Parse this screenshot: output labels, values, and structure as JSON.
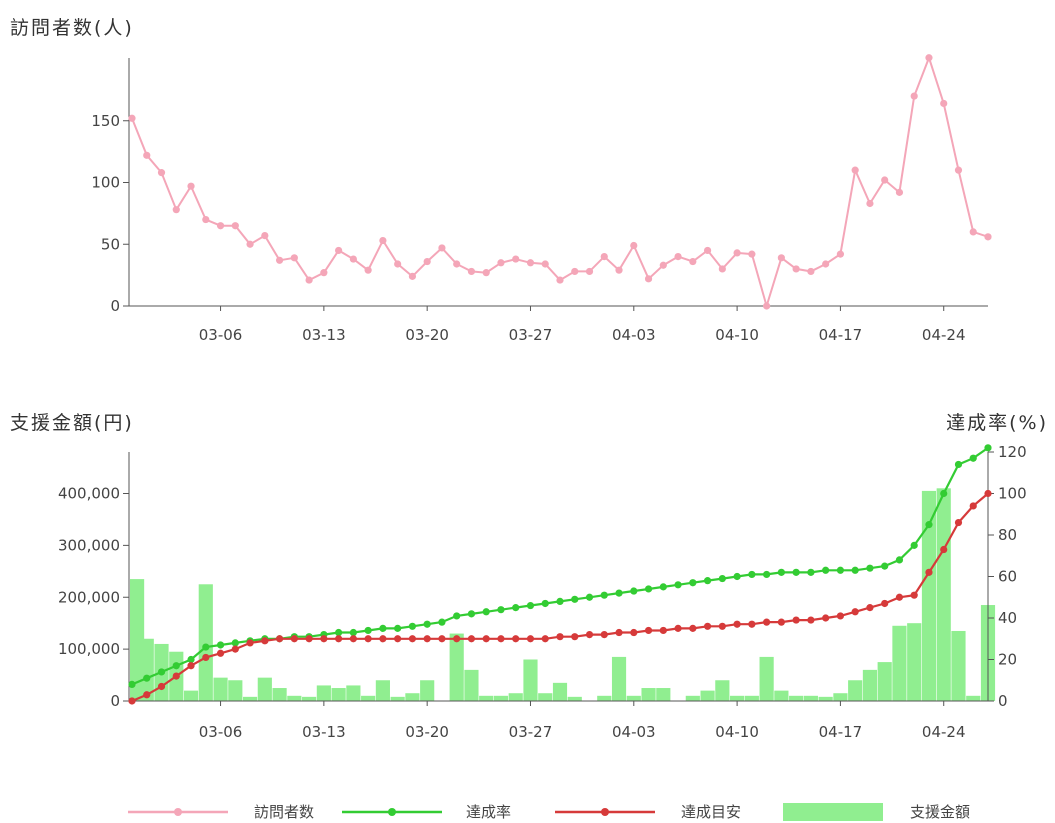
{
  "chart_data": [
    {
      "type": "line",
      "ylabel": "訪問者数(人)",
      "xticks": [
        "03-06",
        "03-13",
        "03-20",
        "03-27",
        "04-03",
        "04-10",
        "04-17",
        "04-24"
      ],
      "yticks": [
        "0",
        "50",
        "100",
        "150"
      ],
      "ylim": [
        0,
        200
      ],
      "x_start": "02-29",
      "grid": false,
      "series": [
        {
          "name": "訪問者数",
          "color": "#f4a6b8",
          "values": [
            152,
            122,
            108,
            78,
            97,
            70,
            65,
            65,
            50,
            57,
            37,
            39,
            21,
            27,
            45,
            38,
            29,
            53,
            34,
            24,
            36,
            47,
            34,
            28,
            27,
            35,
            38,
            35,
            34,
            21,
            28,
            28,
            40,
            29,
            49,
            22,
            33,
            40,
            36,
            45,
            30,
            43,
            42,
            0,
            39,
            30,
            28,
            34,
            42,
            110,
            83,
            102,
            92,
            170,
            201,
            164,
            110,
            60,
            56
          ]
        }
      ]
    },
    {
      "type": "bar+line",
      "ylabel_left": "支援金額(円)",
      "ylabel_right": "達成率(%)",
      "xticks": [
        "03-06",
        "03-13",
        "03-20",
        "03-27",
        "04-03",
        "04-10",
        "04-17",
        "04-24"
      ],
      "yticks_left": [
        "0",
        "100,000",
        "200,000",
        "300,000",
        "400,000"
      ],
      "yticks_right": [
        "0",
        "20",
        "40",
        "60",
        "80",
        "100",
        "120"
      ],
      "ylim_left": [
        0,
        480000
      ],
      "ylim_right": [
        0,
        120
      ],
      "x_start": "02-29",
      "grid": false,
      "legend_position": "bottom",
      "bars": {
        "name": "支援金額",
        "color": "#90ee90",
        "values": [
          235000,
          120000,
          110000,
          95000,
          20000,
          225000,
          45000,
          40000,
          8000,
          45000,
          25000,
          10000,
          8000,
          30000,
          25000,
          30000,
          10000,
          40000,
          8000,
          15000,
          40000,
          0,
          130000,
          60000,
          10000,
          10000,
          15000,
          80000,
          15000,
          35000,
          8000,
          0,
          10000,
          85000,
          10000,
          25000,
          25000,
          0,
          10000,
          20000,
          40000,
          10000,
          10000,
          85000,
          20000,
          10000,
          10000,
          8000,
          15000,
          40000,
          60000,
          75000,
          145000,
          150000,
          405000,
          410000,
          135000,
          10000,
          185000
        ]
      },
      "series": [
        {
          "name": "達成率",
          "color": "#33cc33",
          "values": [
            8,
            11,
            14,
            17,
            20,
            26,
            27,
            28,
            29,
            30,
            30,
            31,
            31,
            32,
            33,
            33,
            34,
            35,
            35,
            36,
            37,
            38,
            41,
            42,
            43,
            44,
            45,
            46,
            47,
            48,
            49,
            50,
            51,
            52,
            53,
            54,
            55,
            56,
            57,
            58,
            59,
            60,
            61,
            61,
            62,
            62,
            62,
            63,
            63,
            63,
            64,
            65,
            68,
            75,
            85,
            100,
            114,
            117,
            122
          ]
        },
        {
          "name": "達成目安",
          "color": "#d63a3a",
          "values": [
            0,
            3,
            7,
            12,
            17,
            21,
            23,
            25,
            28,
            29,
            30,
            30,
            30,
            30,
            30,
            30,
            30,
            30,
            30,
            30,
            30,
            30,
            30,
            30,
            30,
            30,
            30,
            30,
            30,
            31,
            31,
            32,
            32,
            33,
            33,
            34,
            34,
            35,
            35,
            36,
            36,
            37,
            37,
            38,
            38,
            39,
            39,
            40,
            41,
            43,
            45,
            47,
            50,
            51,
            62,
            73,
            86,
            94,
            100
          ]
        }
      ]
    }
  ],
  "legend": [
    {
      "label": "訪問者数",
      "kind": "line",
      "color": "#f4a6b8"
    },
    {
      "label": "達成率",
      "kind": "line",
      "color": "#33cc33"
    },
    {
      "label": "達成目安",
      "kind": "line",
      "color": "#d63a3a"
    },
    {
      "label": "支援金額",
      "kind": "bar",
      "color": "#90ee90"
    }
  ]
}
